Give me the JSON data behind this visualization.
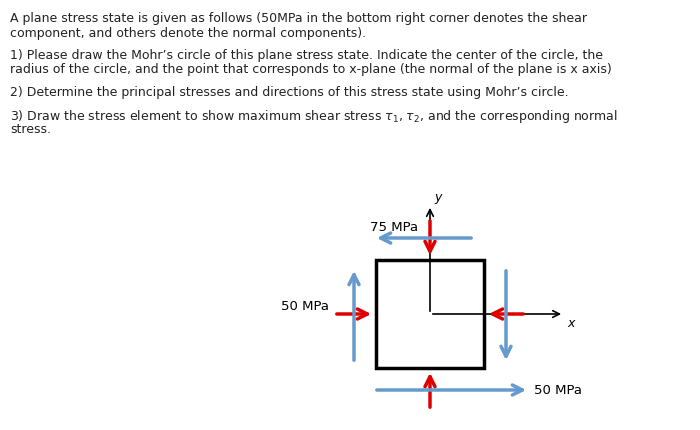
{
  "text_lines_raw": [
    "A plane stress state is given as follows (50MPa in the bottom right corner denotes the shear",
    "component, and others denote the normal components).",
    "1) Please draw the Mohr’s circle of this plane stress state. Indicate the center of the circle, the",
    "radius of the circle, and the point that corresponds to x-plane (the normal of the plane is x axis)",
    "2) Determine the principal stresses and directions of this stress state using Mohr’s circle.",
    "3) Draw the stress element to show maximum shear stress $\\tau_1$, $\\tau_2$, and the corresponding normal",
    "stress."
  ],
  "label_75": "75 MPa",
  "label_50_left": "50 MPa",
  "label_50_bottom": "50 MPa",
  "label_x": "x",
  "label_y": "y",
  "red_arrow_color": "#dd0000",
  "blue_arrow_color": "#6699cc",
  "box_color": "#000000",
  "bg_color": "#ffffff",
  "text_color": "#222222"
}
